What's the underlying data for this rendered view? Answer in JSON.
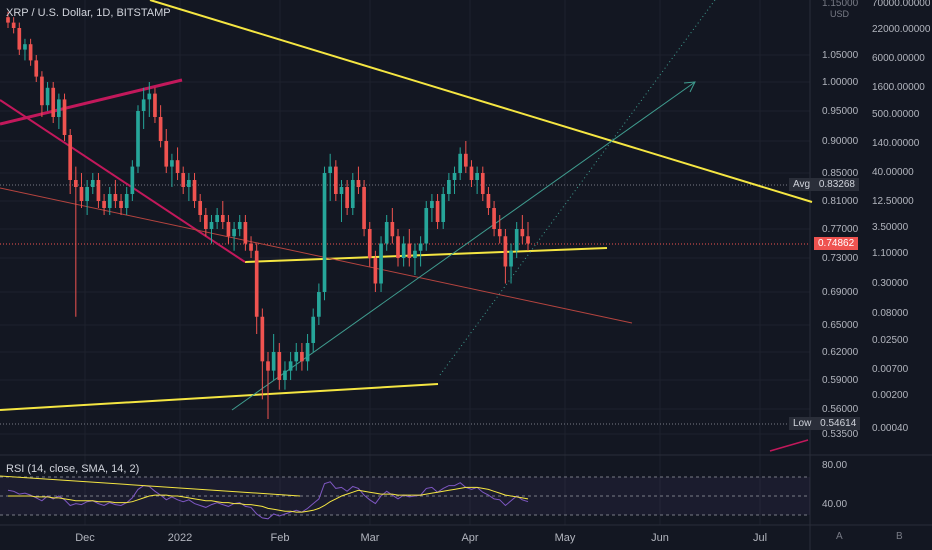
{
  "header": {
    "symbol_line": "XRP / U.S. Dollar, 1D, BITSTAMP"
  },
  "rsi_header": {
    "label": "RSI (14, close, SMA, 14, 2)"
  },
  "axis_tags": {
    "avg_label": "Avg",
    "avg_value": "0.83268",
    "low_label": "Low",
    "low_value": "0.54614",
    "last_value": "0.74862"
  },
  "corner_buttons": {
    "a": "A",
    "b": "B"
  },
  "colors": {
    "bg": "#131722",
    "up": "#26a69a",
    "down": "#ef5350",
    "trend_yellow": "#f5e642",
    "magenta": "#c2185b",
    "rsi_line": "#7e57c2",
    "rsi_ma": "#f5e642"
  },
  "chart_data": {
    "type": "candlestick",
    "currency_label": "USD",
    "price_ticks": [
      "1.15000",
      "1.05000",
      "1.00000",
      "0.95000",
      "0.90000",
      "0.85000",
      "0.81000",
      "0.77000",
      "0.73000",
      "0.69000",
      "0.65000",
      "0.62000",
      "0.59000",
      "0.56000",
      "0.53500"
    ],
    "secondary_ticks": [
      "70000.00000",
      "22000.00000",
      "6000.00000",
      "1600.00000",
      "500.00000",
      "140.00000",
      "40.00000",
      "12.50000",
      "3.50000",
      "1.10000",
      "0.30000",
      "0.08000",
      "0.02500",
      "0.00700",
      "0.00200",
      "0.00040"
    ],
    "x_labels": [
      "Dec",
      "2022",
      "Feb",
      "Mar",
      "Apr",
      "May",
      "Jun",
      "Jul"
    ],
    "avg": 0.83268,
    "low": 0.54614,
    "last": 0.74862,
    "rsi_ticks": [
      "80.00",
      "40.00"
    ],
    "ohlc": [
      [
        1.12,
        1.13,
        1.1,
        1.11
      ],
      [
        1.11,
        1.12,
        1.09,
        1.1
      ],
      [
        1.1,
        1.11,
        1.05,
        1.06
      ],
      [
        1.06,
        1.08,
        1.04,
        1.07
      ],
      [
        1.07,
        1.08,
        1.03,
        1.04
      ],
      [
        1.04,
        1.05,
        1.0,
        1.01
      ],
      [
        1.01,
        1.02,
        0.94,
        0.96
      ],
      [
        0.96,
        1.0,
        0.95,
        0.99
      ],
      [
        0.99,
        1.0,
        0.93,
        0.94
      ],
      [
        0.94,
        0.98,
        0.92,
        0.97
      ],
      [
        0.97,
        0.98,
        0.9,
        0.91
      ],
      [
        0.91,
        0.92,
        0.82,
        0.84
      ],
      [
        0.84,
        0.86,
        0.66,
        0.83
      ],
      [
        0.83,
        0.85,
        0.8,
        0.81
      ],
      [
        0.81,
        0.84,
        0.79,
        0.83
      ],
      [
        0.83,
        0.85,
        0.82,
        0.84
      ],
      [
        0.84,
        0.85,
        0.8,
        0.81
      ],
      [
        0.81,
        0.82,
        0.79,
        0.8
      ],
      [
        0.8,
        0.83,
        0.79,
        0.82
      ],
      [
        0.82,
        0.84,
        0.8,
        0.81
      ],
      [
        0.81,
        0.82,
        0.79,
        0.8
      ],
      [
        0.8,
        0.83,
        0.79,
        0.82
      ],
      [
        0.82,
        0.87,
        0.81,
        0.86
      ],
      [
        0.86,
        0.96,
        0.85,
        0.95
      ],
      [
        0.95,
        0.99,
        0.92,
        0.97
      ],
      [
        0.97,
        1.0,
        0.94,
        0.98
      ],
      [
        0.98,
        0.99,
        0.93,
        0.94
      ],
      [
        0.94,
        0.96,
        0.89,
        0.9
      ],
      [
        0.9,
        0.92,
        0.85,
        0.86
      ],
      [
        0.86,
        0.88,
        0.83,
        0.87
      ],
      [
        0.87,
        0.89,
        0.84,
        0.85
      ],
      [
        0.85,
        0.86,
        0.82,
        0.83
      ],
      [
        0.83,
        0.85,
        0.81,
        0.84
      ],
      [
        0.84,
        0.85,
        0.8,
        0.81
      ],
      [
        0.81,
        0.82,
        0.78,
        0.79
      ],
      [
        0.79,
        0.8,
        0.76,
        0.77
      ],
      [
        0.77,
        0.79,
        0.75,
        0.78
      ],
      [
        0.78,
        0.8,
        0.77,
        0.79
      ],
      [
        0.79,
        0.81,
        0.77,
        0.78
      ],
      [
        0.78,
        0.79,
        0.75,
        0.76
      ],
      [
        0.76,
        0.78,
        0.74,
        0.77
      ],
      [
        0.77,
        0.79,
        0.76,
        0.78
      ],
      [
        0.78,
        0.79,
        0.74,
        0.75
      ],
      [
        0.75,
        0.76,
        0.73,
        0.74
      ],
      [
        0.74,
        0.75,
        0.64,
        0.66
      ],
      [
        0.66,
        0.67,
        0.57,
        0.61
      ],
      [
        0.61,
        0.62,
        0.55,
        0.6
      ],
      [
        0.6,
        0.64,
        0.59,
        0.62
      ],
      [
        0.62,
        0.63,
        0.58,
        0.59
      ],
      [
        0.59,
        0.61,
        0.58,
        0.6
      ],
      [
        0.6,
        0.62,
        0.59,
        0.61
      ],
      [
        0.61,
        0.63,
        0.6,
        0.62
      ],
      [
        0.62,
        0.63,
        0.6,
        0.61
      ],
      [
        0.61,
        0.64,
        0.6,
        0.63
      ],
      [
        0.63,
        0.67,
        0.62,
        0.66
      ],
      [
        0.66,
        0.7,
        0.65,
        0.69
      ],
      [
        0.69,
        0.86,
        0.68,
        0.85
      ],
      [
        0.85,
        0.88,
        0.81,
        0.86
      ],
      [
        0.86,
        0.87,
        0.81,
        0.82
      ],
      [
        0.82,
        0.84,
        0.78,
        0.83
      ],
      [
        0.83,
        0.84,
        0.79,
        0.8
      ],
      [
        0.8,
        0.85,
        0.79,
        0.84
      ],
      [
        0.84,
        0.86,
        0.82,
        0.83
      ],
      [
        0.83,
        0.84,
        0.76,
        0.77
      ],
      [
        0.77,
        0.78,
        0.72,
        0.73
      ],
      [
        0.73,
        0.74,
        0.69,
        0.7
      ],
      [
        0.7,
        0.76,
        0.69,
        0.75
      ],
      [
        0.75,
        0.79,
        0.74,
        0.78
      ],
      [
        0.78,
        0.8,
        0.75,
        0.76
      ],
      [
        0.76,
        0.77,
        0.72,
        0.73
      ],
      [
        0.73,
        0.76,
        0.72,
        0.75
      ],
      [
        0.75,
        0.77,
        0.72,
        0.73
      ],
      [
        0.73,
        0.75,
        0.71,
        0.74
      ],
      [
        0.74,
        0.76,
        0.72,
        0.75
      ],
      [
        0.75,
        0.81,
        0.74,
        0.8
      ],
      [
        0.8,
        0.82,
        0.78,
        0.81
      ],
      [
        0.81,
        0.82,
        0.77,
        0.78
      ],
      [
        0.78,
        0.83,
        0.77,
        0.82
      ],
      [
        0.82,
        0.85,
        0.81,
        0.84
      ],
      [
        0.84,
        0.86,
        0.82,
        0.85
      ],
      [
        0.85,
        0.89,
        0.84,
        0.88
      ],
      [
        0.88,
        0.9,
        0.85,
        0.86
      ],
      [
        0.86,
        0.87,
        0.83,
        0.84
      ],
      [
        0.84,
        0.86,
        0.82,
        0.85
      ],
      [
        0.85,
        0.86,
        0.81,
        0.82
      ],
      [
        0.82,
        0.83,
        0.79,
        0.8
      ],
      [
        0.8,
        0.81,
        0.76,
        0.77
      ],
      [
        0.77,
        0.79,
        0.75,
        0.76
      ],
      [
        0.76,
        0.77,
        0.7,
        0.72
      ],
      [
        0.72,
        0.75,
        0.7,
        0.74
      ],
      [
        0.74,
        0.78,
        0.73,
        0.77
      ],
      [
        0.77,
        0.79,
        0.75,
        0.76
      ],
      [
        0.76,
        0.78,
        0.74,
        0.75
      ]
    ],
    "rsi": [
      56,
      55,
      52,
      53,
      51,
      48,
      45,
      50,
      47,
      50,
      46,
      40,
      42,
      41,
      44,
      45,
      42,
      40,
      43,
      41,
      40,
      43,
      48,
      57,
      61,
      60,
      55,
      51,
      46,
      49,
      46,
      44,
      46,
      42,
      40,
      38,
      41,
      43,
      41,
      39,
      42,
      43,
      39,
      38,
      31,
      27,
      26,
      31,
      29,
      31,
      33,
      35,
      33,
      37,
      42,
      47,
      63,
      65,
      58,
      59,
      55,
      60,
      58,
      51,
      46,
      42,
      50,
      55,
      51,
      47,
      51,
      49,
      50,
      51,
      58,
      59,
      54,
      58,
      61,
      61,
      64,
      59,
      57,
      59,
      54,
      51,
      47,
      46,
      40,
      45,
      50,
      46,
      44
    ],
    "rsi_ma": [
      50,
      50,
      50,
      50,
      50,
      49,
      49,
      49,
      48,
      48,
      47,
      46,
      45,
      45,
      45,
      45,
      44,
      44,
      44,
      43,
      43,
      43,
      44,
      46,
      48,
      50,
      51,
      51,
      51,
      50,
      50,
      49,
      48,
      47,
      46,
      45,
      45,
      44,
      43,
      43,
      42,
      42,
      41,
      41,
      40,
      39,
      37,
      36,
      35,
      34,
      34,
      33,
      33,
      34,
      35,
      37,
      40,
      44,
      47,
      50,
      52,
      54,
      56,
      55,
      54,
      53,
      52,
      52,
      52,
      51,
      51,
      51,
      51,
      51,
      52,
      53,
      54,
      55,
      56,
      57,
      58,
      59,
      59,
      59,
      58,
      57,
      55,
      53,
      51,
      50,
      49,
      48,
      47
    ]
  }
}
